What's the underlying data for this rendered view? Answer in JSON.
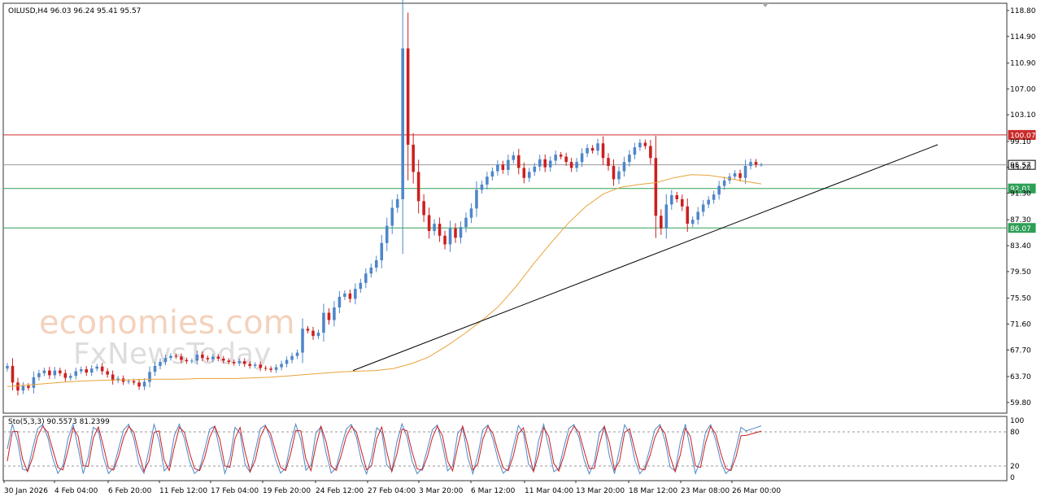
{
  "header": {
    "symbol_info": "OILUSD,H4  96.03 96.24 95.41 95.57"
  },
  "stoch_header": "Sto(5,3,3) 90.5573 81.2399",
  "watermark": {
    "line1": "economies.com",
    "line2": "FxNewsToday"
  },
  "chart_data": [
    {
      "type": "candlestick",
      "symbol": "OILUSD",
      "timeframe": "H4",
      "ohlc_last": {
        "open": 96.03,
        "high": 96.24,
        "low": 95.41,
        "close": 95.57
      },
      "price_axis_labels": [
        "118.80",
        "114.90",
        "110.90",
        "107.00",
        "103.10",
        "99.10",
        "95.20",
        "91.30",
        "87.30",
        "83.40",
        "79.50",
        "75.50",
        "71.60",
        "67.70",
        "63.70",
        "59.80"
      ],
      "ylim": [
        58.8,
        119.4
      ],
      "time_axis_labels": [
        "30 Jan 2026",
        "4 Feb 04:00",
        "6 Feb 20:00",
        "11 Feb 12:00",
        "17 Feb 04:00",
        "19 Feb 20:00",
        "24 Feb 12:00",
        "27 Feb 04:00",
        "3 Mar 20:00",
        "6 Mar 12:00",
        "11 Mar 04:00",
        "13 Mar 20:00",
        "18 Mar 12:00",
        "23 Mar 08:00",
        "26 Mar 00:00"
      ],
      "horizontal_levels": [
        {
          "value": 100.07,
          "label": "100.07",
          "color": "#cc2b2b"
        },
        {
          "value": 95.57,
          "label": "95.57",
          "color": "#9a9a9a",
          "current_price": true
        },
        {
          "value": 92.01,
          "label": "92.01",
          "color": "#2e9f57"
        },
        {
          "value": 86.07,
          "label": "86.07",
          "color": "#2e9f57"
        }
      ],
      "trendline": {
        "from": [
          "24 Feb 12:00",
          64.6
        ],
        "to": [
          "29 Mar",
          98.6
        ],
        "color": "#000000"
      },
      "moving_average": {
        "color": "#e8a33a",
        "values": [
          62.2,
          62.4,
          62.6,
          62.8,
          63.0,
          63.1,
          63.2,
          63.2,
          63.3,
          63.3,
          63.3,
          63.4,
          63.4,
          63.4,
          63.5,
          63.6,
          63.8,
          64.0,
          64.2,
          64.4,
          64.5,
          64.6,
          64.9,
          65.6,
          66.6,
          68.2,
          70.0,
          72.0,
          74.2,
          77.2,
          80.6,
          83.8,
          86.8,
          89.3,
          91.2,
          92.2,
          92.6,
          92.9,
          93.6,
          94.1,
          94.0,
          93.6,
          93.1,
          92.7
        ]
      },
      "candles_close": [
        65.3,
        62.8,
        61.6,
        62.3,
        62.0,
        63.6,
        64.2,
        64.6,
        63.9,
        64.6,
        64.2,
        63.5,
        63.8,
        64.5,
        64.8,
        64.3,
        64.9,
        65.2,
        64.5,
        64.0,
        63.1,
        63.4,
        62.9,
        63.0,
        62.8,
        62.2,
        62.9,
        64.4,
        65.3,
        65.9,
        66.5,
        66.8,
        66.7,
        66.2,
        66.0,
        66.1,
        67.0,
        66.5,
        66.3,
        66.7,
        66.4,
        66.1,
        65.9,
        65.7,
        66.0,
        65.6,
        65.3,
        65.5,
        65.0,
        64.9,
        64.7,
        65.1,
        65.6,
        66.2,
        66.8,
        67.3,
        70.9,
        70.6,
        69.8,
        70.3,
        73.3,
        72.2,
        74.1,
        75.7,
        76.2,
        75.4,
        76.9,
        77.8,
        79.2,
        80.1,
        81.2,
        83.8,
        86.4,
        89.1,
        90.4,
        113.1,
        98.6,
        94.5,
        90.1,
        88.0,
        85.6,
        86.7,
        84.9,
        83.6,
        86.0,
        84.6,
        86.2,
        87.6,
        89.0,
        91.8,
        92.6,
        93.8,
        94.6,
        95.6,
        94.8,
        96.3,
        97.0,
        95.1,
        93.6,
        94.5,
        95.3,
        96.4,
        95.2,
        96.2,
        97.1,
        96.8,
        96.0,
        95.1,
        96.0,
        97.3,
        98.1,
        97.7,
        98.8,
        96.6,
        95.4,
        93.4,
        94.6,
        96.0,
        97.1,
        98.2,
        98.9,
        98.4,
        96.6,
        87.9,
        86.0,
        89.6,
        91.0,
        90.4,
        89.3,
        86.7,
        87.3,
        88.5,
        89.6,
        90.3,
        91.1,
        92.4,
        93.2,
        93.8,
        94.3,
        93.6,
        95.4,
        96.0,
        95.6,
        95.6
      ],
      "indicator": {
        "name": "Stochastic",
        "params": "5,3,3",
        "main": 90.5573,
        "signal": 81.2399,
        "levels": [
          80,
          20
        ],
        "axis_labels": [
          "100",
          "80",
          "20",
          "0"
        ],
        "colors": {
          "main": "#4f86c9",
          "signal": "#cc1f1f"
        }
      }
    }
  ]
}
